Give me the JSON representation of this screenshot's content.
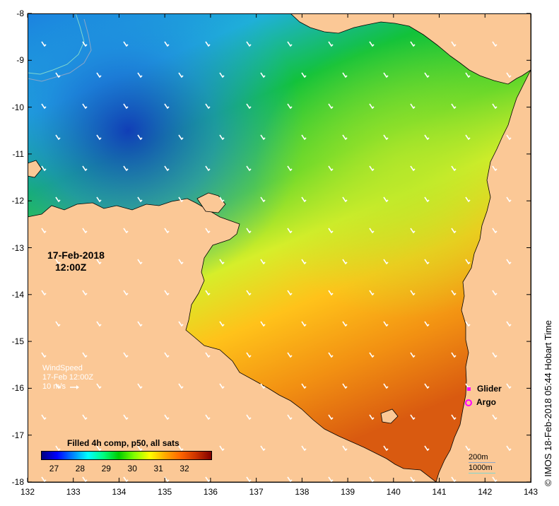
{
  "map": {
    "lon_range": [
      132,
      143
    ],
    "lat_range": [
      -18,
      -8
    ],
    "x_ticks": [
      "132",
      "133",
      "134",
      "135",
      "136",
      "137",
      "138",
      "139",
      "140",
      "141",
      "142",
      "143"
    ],
    "y_ticks": [
      "-8",
      "-9",
      "-10",
      "-11",
      "-12",
      "-13",
      "-14",
      "-15",
      "-16",
      "-17",
      "-18"
    ],
    "land_color": "#fbc896",
    "timestamp": [
      "17-Feb-2018",
      "12:00Z"
    ]
  },
  "wind_legend": {
    "title": "WindSpeed",
    "time": "17-Feb 12:00Z",
    "reference": "10 m/s"
  },
  "colorbar": {
    "title": "Filled 4h comp, p50, all sats",
    "range": [
      26.5,
      33
    ],
    "ticks": [
      "27",
      "28",
      "29",
      "30",
      "31",
      "32"
    ],
    "colors": [
      "#000080",
      "#0000ff",
      "#0080ff",
      "#00ffff",
      "#00ff80",
      "#00cc00",
      "#80ff00",
      "#ffff00",
      "#ffaa00",
      "#ff6600",
      "#cc3300",
      "#800000"
    ]
  },
  "platform_legend": {
    "glider": "Glider",
    "argo": "Argo"
  },
  "contour_legend": {
    "shallow": "200m",
    "deep": "1000m"
  },
  "credit": "© IMOS 18-Feb-2018 05:44 Hobart Time"
}
